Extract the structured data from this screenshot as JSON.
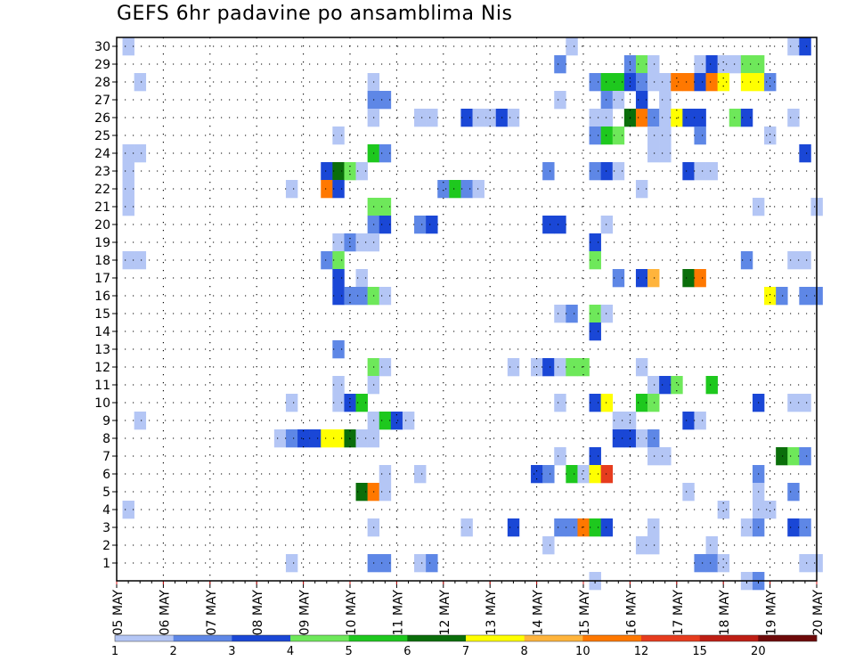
{
  "chart_data": {
    "type": "heatmap",
    "title": "GEFS 6hr padavine po ansamblima Nis",
    "xlabel": "",
    "ylabel": "",
    "x_range": [
      0,
      60
    ],
    "x_unit": "6-hour step",
    "x_tick_labels": [
      "05 MAY",
      "06 MAY",
      "07 MAY",
      "08 MAY",
      "09 MAY",
      "10 MAY",
      "11 MAY",
      "12 MAY",
      "13 MAY",
      "14 MAY",
      "15 MAY",
      "16 MAY",
      "17 MAY",
      "18 MAY",
      "19 MAY",
      "20 MAY"
    ],
    "y_tick_labels": [
      "1",
      "2",
      "3",
      "4",
      "5",
      "6",
      "7",
      "8",
      "9",
      "10",
      "11",
      "12",
      "13",
      "14",
      "15",
      "16",
      "17",
      "18",
      "19",
      "20",
      "21",
      "22",
      "23",
      "24",
      "25",
      "26",
      "27",
      "28",
      "29",
      "30"
    ],
    "grid": true,
    "legend": {
      "placement": "bottom",
      "labels": [
        "1",
        "2",
        "3",
        "4",
        "5",
        "6",
        "7",
        "8",
        "10",
        "12",
        "15",
        "20"
      ],
      "colors": [
        "#b4c6f5",
        "#5e87e6",
        "#1a47d6",
        "#6ee85a",
        "#1ec81e",
        "#0a6e0a",
        "#ffff00",
        "#ffb43c",
        "#ff7800",
        "#e63c1e",
        "#be1e14",
        "#6e0a0a"
      ]
    },
    "cells": [
      [
        1,
        30,
        0
      ],
      [
        39,
        30,
        0
      ],
      [
        58,
        30,
        0
      ],
      [
        59,
        30,
        2
      ],
      [
        38,
        29,
        1
      ],
      [
        44,
        29,
        1
      ],
      [
        45,
        29,
        3
      ],
      [
        46,
        29,
        0
      ],
      [
        50,
        29,
        0
      ],
      [
        51,
        29,
        2
      ],
      [
        52,
        29,
        0
      ],
      [
        53,
        29,
        0
      ],
      [
        54,
        29,
        3
      ],
      [
        55,
        29,
        3
      ],
      [
        2,
        28,
        0
      ],
      [
        22,
        28,
        0
      ],
      [
        41,
        28,
        1
      ],
      [
        42,
        28,
        4
      ],
      [
        43,
        28,
        4
      ],
      [
        44,
        28,
        2
      ],
      [
        45,
        28,
        1
      ],
      [
        46,
        28,
        0
      ],
      [
        47,
        28,
        0
      ],
      [
        48,
        28,
        8
      ],
      [
        49,
        28,
        8
      ],
      [
        50,
        28,
        2
      ],
      [
        51,
        28,
        8
      ],
      [
        52,
        28,
        6
      ],
      [
        54,
        28,
        6
      ],
      [
        55,
        28,
        6
      ],
      [
        56,
        28,
        1
      ],
      [
        22,
        27,
        1
      ],
      [
        23,
        27,
        1
      ],
      [
        38,
        27,
        0
      ],
      [
        42,
        27,
        1
      ],
      [
        43,
        27,
        0
      ],
      [
        45,
        27,
        2
      ],
      [
        47,
        27,
        0
      ],
      [
        22,
        26,
        0
      ],
      [
        26,
        26,
        0
      ],
      [
        27,
        26,
        0
      ],
      [
        30,
        26,
        2
      ],
      [
        31,
        26,
        0
      ],
      [
        32,
        26,
        0
      ],
      [
        33,
        26,
        2
      ],
      [
        34,
        26,
        0
      ],
      [
        41,
        26,
        0
      ],
      [
        42,
        26,
        0
      ],
      [
        44,
        26,
        5
      ],
      [
        45,
        26,
        8
      ],
      [
        46,
        26,
        1
      ],
      [
        47,
        26,
        0
      ],
      [
        48,
        26,
        6
      ],
      [
        49,
        26,
        2
      ],
      [
        50,
        26,
        2
      ],
      [
        53,
        26,
        3
      ],
      [
        54,
        26,
        2
      ],
      [
        58,
        26,
        0
      ],
      [
        19,
        25,
        0
      ],
      [
        41,
        25,
        1
      ],
      [
        42,
        25,
        4
      ],
      [
        43,
        25,
        3
      ],
      [
        46,
        25,
        0
      ],
      [
        47,
        25,
        0
      ],
      [
        50,
        25,
        1
      ],
      [
        56,
        25,
        0
      ],
      [
        1,
        24,
        0
      ],
      [
        2,
        24,
        0
      ],
      [
        22,
        24,
        4
      ],
      [
        23,
        24,
        1
      ],
      [
        46,
        24,
        0
      ],
      [
        47,
        24,
        0
      ],
      [
        59,
        24,
        2
      ],
      [
        1,
        23,
        0
      ],
      [
        18,
        23,
        2
      ],
      [
        19,
        23,
        5
      ],
      [
        20,
        23,
        3
      ],
      [
        21,
        23,
        0
      ],
      [
        37,
        23,
        1
      ],
      [
        41,
        23,
        1
      ],
      [
        42,
        23,
        2
      ],
      [
        43,
        23,
        0
      ],
      [
        49,
        23,
        2
      ],
      [
        50,
        23,
        0
      ],
      [
        51,
        23,
        0
      ],
      [
        1,
        22,
        0
      ],
      [
        15,
        22,
        0
      ],
      [
        18,
        22,
        8
      ],
      [
        19,
        22,
        2
      ],
      [
        28,
        22,
        1
      ],
      [
        29,
        22,
        4
      ],
      [
        30,
        22,
        1
      ],
      [
        31,
        22,
        0
      ],
      [
        45,
        22,
        0
      ],
      [
        1,
        21,
        0
      ],
      [
        22,
        21,
        3
      ],
      [
        23,
        21,
        3
      ],
      [
        55,
        21,
        0
      ],
      [
        60,
        21,
        0
      ],
      [
        22,
        20,
        1
      ],
      [
        23,
        20,
        2
      ],
      [
        26,
        20,
        1
      ],
      [
        27,
        20,
        2
      ],
      [
        37,
        20,
        2
      ],
      [
        38,
        20,
        2
      ],
      [
        42,
        20,
        0
      ],
      [
        19,
        19,
        0
      ],
      [
        20,
        19,
        1
      ],
      [
        21,
        19,
        0
      ],
      [
        22,
        19,
        0
      ],
      [
        41,
        19,
        2
      ],
      [
        1,
        18,
        0
      ],
      [
        2,
        18,
        0
      ],
      [
        18,
        18,
        1
      ],
      [
        19,
        18,
        3
      ],
      [
        41,
        18,
        3
      ],
      [
        54,
        18,
        1
      ],
      [
        58,
        18,
        0
      ],
      [
        59,
        18,
        0
      ],
      [
        19,
        17,
        2
      ],
      [
        21,
        17,
        0
      ],
      [
        43,
        17,
        1
      ],
      [
        45,
        17,
        2
      ],
      [
        46,
        17,
        7
      ],
      [
        49,
        17,
        5
      ],
      [
        50,
        17,
        8
      ],
      [
        19,
        16,
        2
      ],
      [
        20,
        16,
        1
      ],
      [
        21,
        16,
        1
      ],
      [
        22,
        16,
        3
      ],
      [
        23,
        16,
        0
      ],
      [
        56,
        16,
        6
      ],
      [
        57,
        16,
        1
      ],
      [
        59,
        16,
        1
      ],
      [
        60,
        16,
        1
      ],
      [
        38,
        15,
        0
      ],
      [
        39,
        15,
        1
      ],
      [
        41,
        15,
        3
      ],
      [
        42,
        15,
        0
      ],
      [
        41,
        14,
        2
      ],
      [
        19,
        13,
        1
      ],
      [
        22,
        12,
        3
      ],
      [
        23,
        12,
        0
      ],
      [
        34,
        12,
        0
      ],
      [
        36,
        12,
        0
      ],
      [
        37,
        12,
        2
      ],
      [
        38,
        12,
        0
      ],
      [
        39,
        12,
        3
      ],
      [
        40,
        12,
        3
      ],
      [
        45,
        12,
        0
      ],
      [
        19,
        11,
        0
      ],
      [
        22,
        11,
        0
      ],
      [
        46,
        11,
        0
      ],
      [
        47,
        11,
        2
      ],
      [
        48,
        11,
        3
      ],
      [
        51,
        11,
        4
      ],
      [
        15,
        10,
        0
      ],
      [
        19,
        10,
        0
      ],
      [
        20,
        10,
        2
      ],
      [
        21,
        10,
        4
      ],
      [
        38,
        10,
        0
      ],
      [
        41,
        10,
        2
      ],
      [
        42,
        10,
        6
      ],
      [
        45,
        10,
        4
      ],
      [
        46,
        10,
        3
      ],
      [
        55,
        10,
        2
      ],
      [
        58,
        10,
        0
      ],
      [
        59,
        10,
        0
      ],
      [
        2,
        9,
        0
      ],
      [
        22,
        9,
        0
      ],
      [
        23,
        9,
        4
      ],
      [
        24,
        9,
        2
      ],
      [
        25,
        9,
        0
      ],
      [
        43,
        9,
        0
      ],
      [
        44,
        9,
        0
      ],
      [
        49,
        9,
        2
      ],
      [
        50,
        9,
        0
      ],
      [
        14,
        8,
        0
      ],
      [
        15,
        8,
        1
      ],
      [
        16,
        8,
        2
      ],
      [
        17,
        8,
        2
      ],
      [
        18,
        8,
        6
      ],
      [
        19,
        8,
        6
      ],
      [
        20,
        8,
        5
      ],
      [
        21,
        8,
        0
      ],
      [
        22,
        8,
        0
      ],
      [
        43,
        8,
        2
      ],
      [
        44,
        8,
        2
      ],
      [
        45,
        8,
        0
      ],
      [
        46,
        8,
        1
      ],
      [
        38,
        7,
        0
      ],
      [
        41,
        7,
        2
      ],
      [
        46,
        7,
        0
      ],
      [
        47,
        7,
        0
      ],
      [
        57,
        7,
        5
      ],
      [
        58,
        7,
        3
      ],
      [
        59,
        7,
        1
      ],
      [
        23,
        6,
        0
      ],
      [
        26,
        6,
        0
      ],
      [
        36,
        6,
        2
      ],
      [
        37,
        6,
        1
      ],
      [
        39,
        6,
        4
      ],
      [
        40,
        6,
        0
      ],
      [
        41,
        6,
        6
      ],
      [
        42,
        6,
        9
      ],
      [
        55,
        6,
        1
      ],
      [
        21,
        5,
        5
      ],
      [
        22,
        5,
        8
      ],
      [
        23,
        5,
        0
      ],
      [
        49,
        5,
        0
      ],
      [
        55,
        5,
        0
      ],
      [
        58,
        5,
        1
      ],
      [
        1,
        4,
        0
      ],
      [
        52,
        4,
        0
      ],
      [
        55,
        4,
        0
      ],
      [
        56,
        4,
        0
      ],
      [
        22,
        3,
        0
      ],
      [
        30,
        3,
        0
      ],
      [
        34,
        3,
        2
      ],
      [
        38,
        3,
        1
      ],
      [
        39,
        3,
        1
      ],
      [
        40,
        3,
        8
      ],
      [
        41,
        3,
        4
      ],
      [
        42,
        3,
        2
      ],
      [
        46,
        3,
        0
      ],
      [
        54,
        3,
        0
      ],
      [
        55,
        3,
        1
      ],
      [
        58,
        3,
        2
      ],
      [
        59,
        3,
        1
      ],
      [
        37,
        2,
        0
      ],
      [
        45,
        2,
        0
      ],
      [
        46,
        2,
        0
      ],
      [
        51,
        2,
        0
      ],
      [
        15,
        1,
        0
      ],
      [
        22,
        1,
        1
      ],
      [
        23,
        1,
        1
      ],
      [
        26,
        1,
        0
      ],
      [
        27,
        1,
        1
      ],
      [
        50,
        1,
        1
      ],
      [
        51,
        1,
        1
      ],
      [
        52,
        1,
        0
      ],
      [
        59,
        1,
        0
      ],
      [
        60,
        1,
        0
      ],
      [
        54,
        0,
        0
      ],
      [
        55,
        0,
        1
      ],
      [
        41,
        0,
        0
      ]
    ]
  }
}
